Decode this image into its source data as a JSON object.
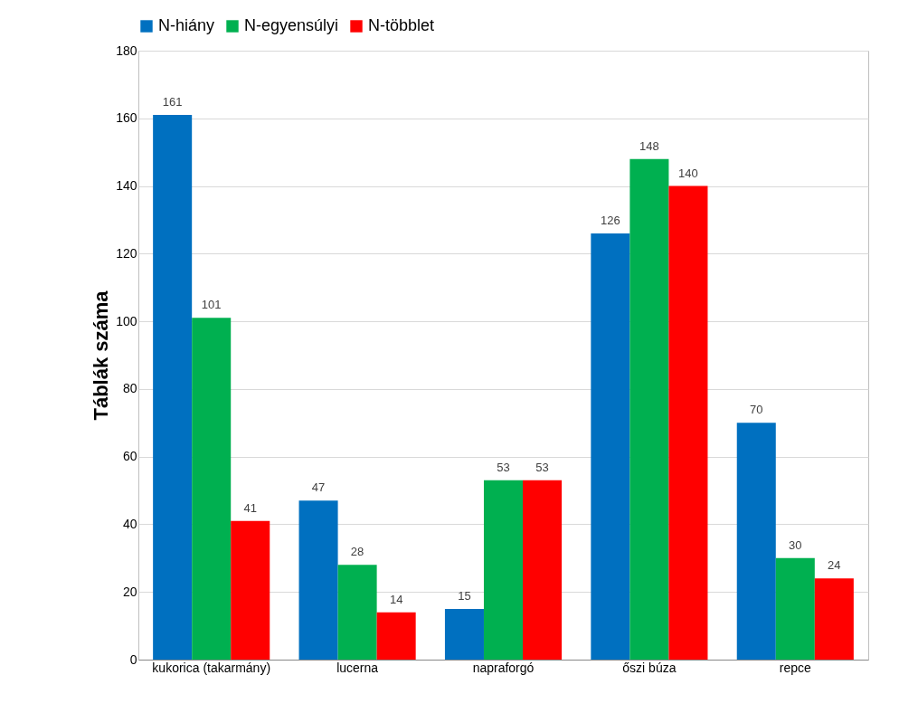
{
  "chart_data": {
    "type": "bar",
    "ylabel": "Táblák száma",
    "categories": [
      "kukorica (takarmány)",
      "lucerna",
      "napraforgó",
      "őszi búza",
      "repce"
    ],
    "series": [
      {
        "name": "N-hiány",
        "color": "#0070c0",
        "values": [
          161,
          47,
          15,
          126,
          70
        ]
      },
      {
        "name": "N-egyensúlyi",
        "color": "#00b050",
        "values": [
          101,
          28,
          53,
          148,
          30
        ]
      },
      {
        "name": "N-többlet",
        "color": "#ff0000",
        "values": [
          41,
          14,
          53,
          140,
          24
        ]
      }
    ],
    "ylim": [
      0,
      180
    ],
    "yticks": [
      0,
      20,
      40,
      60,
      80,
      100,
      120,
      140,
      160,
      180
    ],
    "grid": "y",
    "legend": "top",
    "data_labels": true
  }
}
